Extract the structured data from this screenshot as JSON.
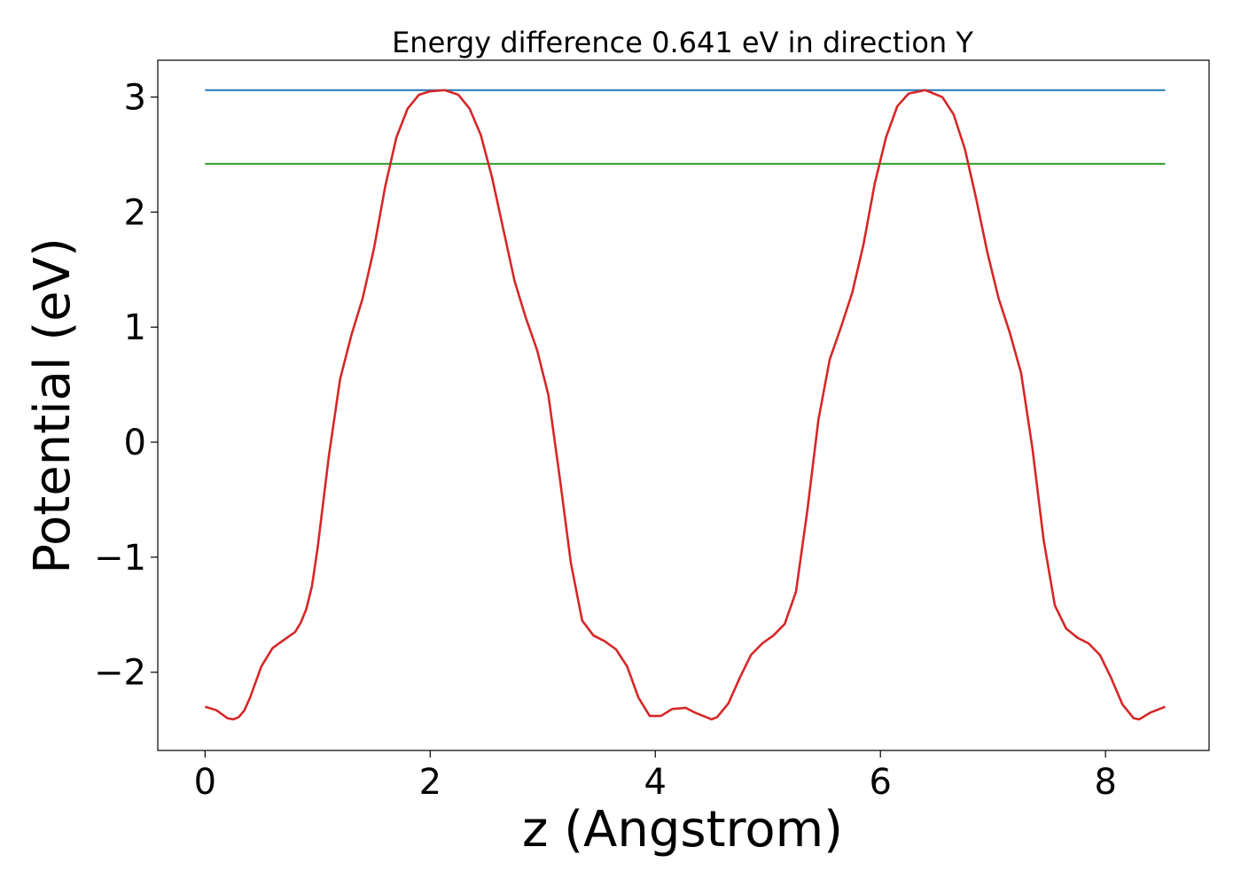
{
  "chart_data": {
    "type": "line",
    "title": "Energy difference 0.641 eV in direction Y",
    "xlabel": "z (Angstrom)",
    "ylabel": "Potential (eV)",
    "xlim": [
      -0.42,
      8.92
    ],
    "ylim": [
      -2.68,
      3.32
    ],
    "xticks": [
      0,
      2,
      4,
      6,
      8
    ],
    "xtick_labels": [
      "0",
      "2",
      "4",
      "6",
      "8"
    ],
    "yticks": [
      -2,
      -1,
      0,
      1,
      2,
      3
    ],
    "ytick_labels": [
      "−2",
      "−1",
      "0",
      "1",
      "2",
      "3"
    ],
    "grid": false,
    "colors": {
      "potential": "#d62728",
      "maximum": "#1f77b4",
      "average": "#2ca02c"
    },
    "series": [
      {
        "key": "potential",
        "x": [
          0.0,
          0.1,
          0.2,
          0.25,
          0.3,
          0.35,
          0.4,
          0.5,
          0.6,
          0.7,
          0.8,
          0.85,
          0.9,
          0.95,
          1.0,
          1.1,
          1.2,
          1.3,
          1.4,
          1.5,
          1.6,
          1.7,
          1.8,
          1.9,
          2.0,
          2.13,
          2.25,
          2.35,
          2.45,
          2.55,
          2.65,
          2.75,
          2.85,
          2.95,
          3.05,
          3.15,
          3.25,
          3.35,
          3.45,
          3.55,
          3.65,
          3.75,
          3.85,
          3.95,
          4.05,
          4.15,
          4.27,
          4.35,
          4.45,
          4.5,
          4.55,
          4.65,
          4.75,
          4.85,
          4.95,
          5.05,
          5.15,
          5.25,
          5.35,
          5.45,
          5.55,
          5.65,
          5.75,
          5.85,
          5.95,
          6.05,
          6.15,
          6.25,
          6.4,
          6.55,
          6.65,
          6.75,
          6.85,
          6.95,
          7.05,
          7.15,
          7.25,
          7.35,
          7.45,
          7.55,
          7.65,
          7.75,
          7.85,
          7.95,
          8.05,
          8.15,
          8.25,
          8.3,
          8.4,
          8.53
        ],
        "y": [
          -2.3,
          -2.33,
          -2.4,
          -2.41,
          -2.39,
          -2.33,
          -2.22,
          -1.95,
          -1.79,
          -1.72,
          -1.65,
          -1.57,
          -1.45,
          -1.25,
          -0.92,
          -0.12,
          0.55,
          0.93,
          1.25,
          1.68,
          2.22,
          2.65,
          2.9,
          3.02,
          3.05,
          3.06,
          3.02,
          2.9,
          2.67,
          2.3,
          1.85,
          1.4,
          1.08,
          0.8,
          0.41,
          -0.3,
          -1.05,
          -1.55,
          -1.68,
          -1.73,
          -1.8,
          -1.95,
          -2.22,
          -2.38,
          -2.38,
          -2.32,
          -2.31,
          -2.35,
          -2.39,
          -2.41,
          -2.39,
          -2.27,
          -2.05,
          -1.85,
          -1.75,
          -1.68,
          -1.58,
          -1.3,
          -0.6,
          0.2,
          0.72,
          1.0,
          1.3,
          1.72,
          2.25,
          2.65,
          2.92,
          3.03,
          3.06,
          3.0,
          2.85,
          2.55,
          2.12,
          1.65,
          1.25,
          0.95,
          0.6,
          -0.05,
          -0.85,
          -1.42,
          -1.62,
          -1.7,
          -1.75,
          -1.85,
          -2.05,
          -2.28,
          -2.4,
          -2.41,
          -2.35,
          -2.3
        ]
      },
      {
        "key": "maximum",
        "x": [
          0.0,
          8.53
        ],
        "y": [
          3.06,
          3.06
        ]
      },
      {
        "key": "average",
        "x": [
          0.0,
          8.53
        ],
        "y": [
          2.42,
          2.42
        ]
      }
    ]
  }
}
